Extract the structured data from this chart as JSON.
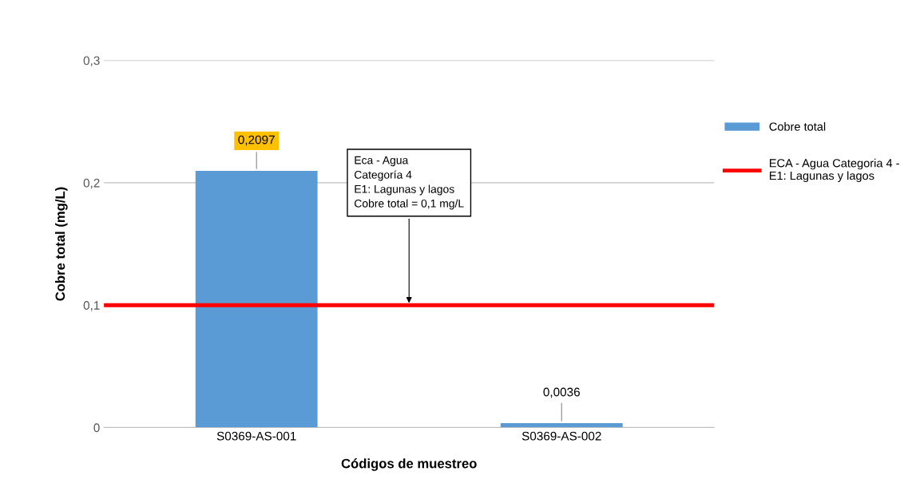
{
  "chart_data": {
    "type": "bar",
    "xlabel": "Códigos de muestreo",
    "ylabel": "Cobre total (mg/L)",
    "categories": [
      "S0369-AS-001",
      "S0369-AS-002"
    ],
    "series": [
      {
        "name": "Cobre total",
        "color": "#5b9bd5",
        "values": [
          0.2097,
          0.0036
        ],
        "value_labels": [
          "0,2097",
          "0,0036"
        ]
      }
    ],
    "ylim": [
      0,
      0.3
    ],
    "yticks": [
      {
        "value": 0,
        "label": "0"
      },
      {
        "value": 0.1,
        "label": "0,1"
      },
      {
        "value": 0.2,
        "label": "0,2"
      },
      {
        "value": 0.3,
        "label": "0,3"
      }
    ],
    "grid": "y",
    "legend": "right",
    "ref_lines": [
      {
        "axis": "y",
        "value": 0.1,
        "label": "ECA - Agua Categoria 4 -\nE1: Lagunas y lagos",
        "color": "#ff0000",
        "line_style": "solid"
      }
    ],
    "annotations": [
      {
        "text": "Eca - Agua\nCategoría 4\nE1: Lagunas y lagos\nCobre total = 0,1 mg/L",
        "y": 0.1
      }
    ]
  }
}
